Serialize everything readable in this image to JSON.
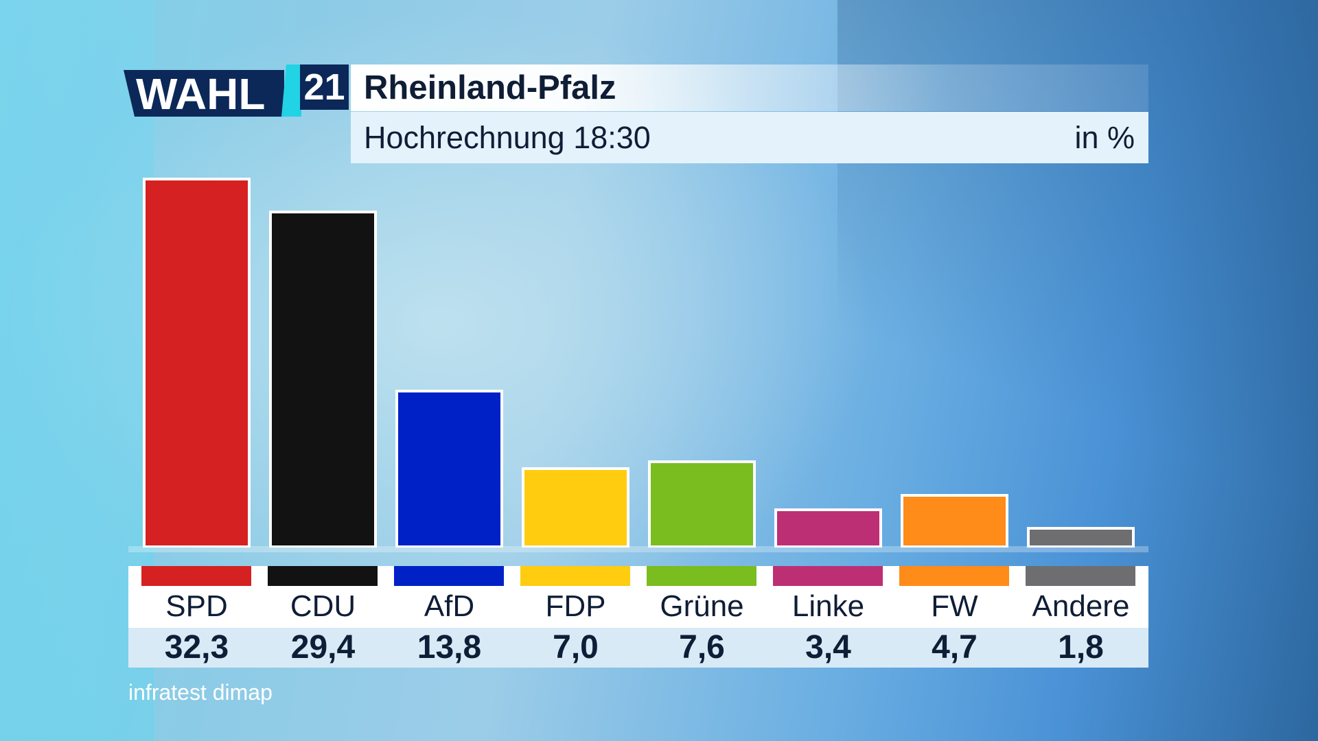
{
  "logo": {
    "word": "WAHL",
    "year": "21",
    "navy": "#0b2859",
    "cyan": "#22d3e6"
  },
  "chart_data": {
    "type": "bar",
    "title": "Rheinland-Pfalz",
    "subtitle": "Hochrechnung 18:30",
    "unit": "in %",
    "categories": [
      "SPD",
      "CDU",
      "AfD",
      "FDP",
      "Grüne",
      "Linke",
      "FW",
      "Andere"
    ],
    "values": [
      32.3,
      29.4,
      13.8,
      7.0,
      7.6,
      3.4,
      4.7,
      1.8
    ],
    "value_labels": [
      "32,3",
      "29,4",
      "13,8",
      "7,0",
      "7,6",
      "3,4",
      "4,7",
      "1,8"
    ],
    "colors": [
      "#d52121",
      "#121212",
      "#0021c6",
      "#ffcc10",
      "#79bd1f",
      "#bd2f74",
      "#ff8b18",
      "#6e6e70"
    ],
    "grid": false
  },
  "source": "infratest dimap"
}
